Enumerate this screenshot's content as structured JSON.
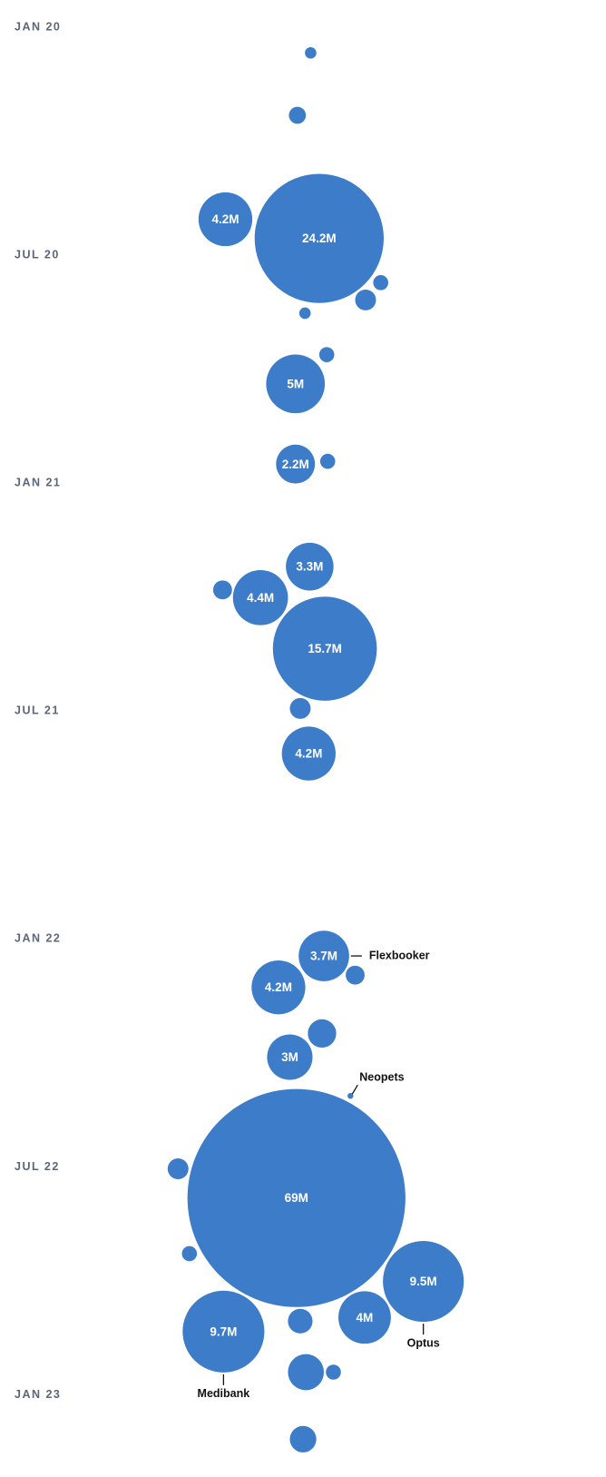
{
  "chart_data": {
    "type": "bubble",
    "color": "#3d7cc9",
    "ylim": [
      2019.94,
      2023.18
    ],
    "yticks": [
      {
        "value": 2020,
        "label": "JAN 20"
      },
      {
        "value": 2020.5,
        "label": "JUL 20"
      },
      {
        "value": 2021,
        "label": "JAN 21"
      },
      {
        "value": 2021.5,
        "label": "JUL 21"
      },
      {
        "value": 2022,
        "label": "JAN 22"
      },
      {
        "value": 2022.5,
        "label": "JUL 22"
      },
      {
        "value": 2023,
        "label": "JAN 23"
      }
    ],
    "y": [
      2020.421,
      2020.463,
      2020.782,
      2020.958,
      2021.183,
      2021.251,
      2021.363,
      2021.593,
      2022.037,
      2022.106,
      2022.259,
      2022.568,
      2022.751,
      2022.83,
      2022.861,
      2022.344,
      2020.056,
      2020.193,
      2020.56,
      2020.598,
      2020.627,
      2020.718,
      2020.952,
      2021.234,
      2021.494,
      2022.079,
      2022.207,
      2022.504,
      2022.69,
      2022.838,
      2022.95,
      2023.097,
      2022.95
    ],
    "values": [
      4.2,
      24.2,
      5,
      2.2,
      3.3,
      4.4,
      15.7,
      4.2,
      3.7,
      4.2,
      3,
      69,
      9.5,
      4,
      9.7,
      0.05,
      0.19,
      0.42,
      0.33,
      0.63,
      0.19,
      0.33,
      0.33,
      0.52,
      0.63,
      0.52,
      1.17,
      0.63,
      0.33,
      0.88,
      1.88,
      1.02,
      0.33
    ],
    "value_labels": [
      "4.2M",
      "24.2M",
      "5M",
      "2.2M",
      "3.3M",
      "4.4M",
      "15.7M",
      "4.2M",
      "3.7M",
      "4.2M",
      "3M",
      "69M",
      "9.5M",
      "4M",
      "9.7M",
      null,
      null,
      null,
      null,
      null,
      null,
      null,
      null,
      null,
      null,
      null,
      null,
      null,
      null,
      null,
      null,
      null,
      null
    ],
    "names": [
      null,
      null,
      null,
      null,
      null,
      null,
      null,
      null,
      "Flexbooker",
      null,
      null,
      null,
      "Optus",
      null,
      "Medibank",
      "Neopets",
      null,
      null,
      null,
      null,
      null,
      null,
      null,
      null,
      null,
      null,
      null,
      null,
      null,
      null,
      null,
      null,
      null
    ]
  }
}
